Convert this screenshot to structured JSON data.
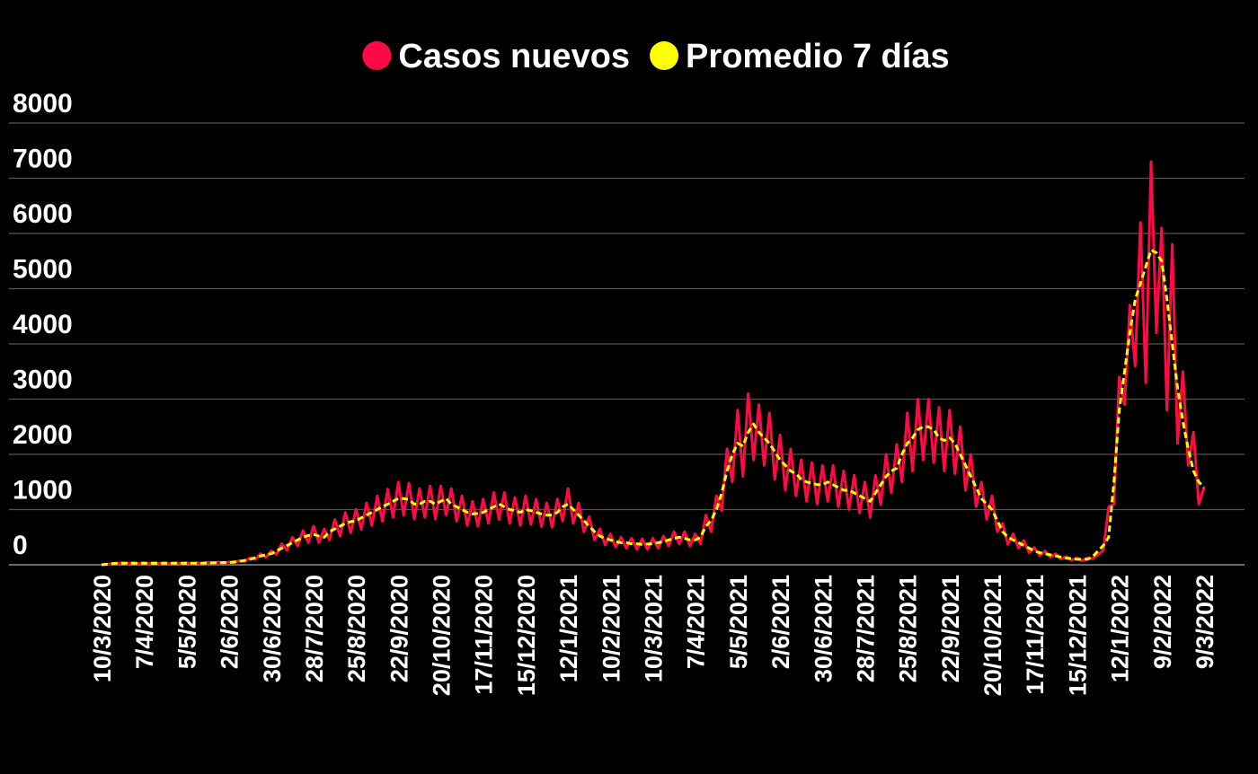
{
  "chart_data": {
    "type": "line",
    "categories": [
      "10/3/2020",
      null,
      null,
      null,
      null,
      null,
      null,
      null,
      "7/4/2020",
      null,
      null,
      null,
      null,
      null,
      null,
      null,
      "5/5/2020",
      null,
      null,
      null,
      null,
      null,
      null,
      null,
      "2/6/2020",
      null,
      null,
      null,
      null,
      null,
      null,
      null,
      "30/6/2020",
      null,
      null,
      null,
      null,
      null,
      null,
      null,
      "28/7/2020",
      null,
      null,
      null,
      null,
      null,
      null,
      null,
      "25/8/2020",
      null,
      null,
      null,
      null,
      null,
      null,
      null,
      "22/9/2020",
      null,
      null,
      null,
      null,
      null,
      null,
      null,
      "20/10/2020",
      null,
      null,
      null,
      null,
      null,
      null,
      null,
      "17/11/2020",
      null,
      null,
      null,
      null,
      null,
      null,
      null,
      "15/12/2020",
      null,
      null,
      null,
      null,
      null,
      null,
      null,
      "12/1/2021",
      null,
      null,
      null,
      null,
      null,
      null,
      null,
      "10/2/2021",
      null,
      null,
      null,
      null,
      null,
      null,
      null,
      "10/3/2021",
      null,
      null,
      null,
      null,
      null,
      null,
      null,
      "7/4/2021",
      null,
      null,
      null,
      null,
      null,
      null,
      null,
      "5/5/2021",
      null,
      null,
      null,
      null,
      null,
      null,
      null,
      "2/6/2021",
      null,
      null,
      null,
      null,
      null,
      null,
      null,
      "30/6/2021",
      null,
      null,
      null,
      null,
      null,
      null,
      null,
      "28/7/2021",
      null,
      null,
      null,
      null,
      null,
      null,
      null,
      "25/8/2021",
      null,
      null,
      null,
      null,
      null,
      null,
      null,
      "22/9/2021",
      null,
      null,
      null,
      null,
      null,
      null,
      null,
      "20/10/2021",
      null,
      null,
      null,
      null,
      null,
      null,
      null,
      "17/11/2021",
      null,
      null,
      null,
      null,
      null,
      null,
      null,
      "15/12/2021",
      null,
      null,
      null,
      null,
      null,
      null,
      null,
      "12/1/2022",
      null,
      null,
      null,
      null,
      null,
      null,
      null,
      "9/2/2022",
      null,
      null,
      null,
      null,
      null,
      null,
      null,
      "9/3/2022"
    ],
    "series": [
      {
        "name": "Casos nuevos",
        "color": "#ff0a45",
        "values": [
          0,
          8,
          25,
          22,
          38,
          22,
          38,
          22,
          38,
          22,
          38,
          22,
          38,
          22,
          38,
          22,
          38,
          22,
          38,
          22,
          44,
          26,
          50,
          30,
          50,
          38,
          75,
          60,
          125,
          98,
          200,
          135,
          250,
          190,
          380,
          260,
          500,
          340,
          620,
          400,
          700,
          400,
          650,
          450,
          820,
          520,
          950,
          580,
          1000,
          640,
          1120,
          710,
          1250,
          790,
          1370,
          860,
          1500,
          900,
          1480,
          830,
          1380,
          860,
          1430,
          830,
          1430,
          900,
          1380,
          790,
          1250,
          710,
          1150,
          700,
          1190,
          750,
          1310,
          820,
          1310,
          750,
          1220,
          710,
          1250,
          730,
          1190,
          690,
          1120,
          680,
          1190,
          790,
          1380,
          750,
          1120,
          600,
          870,
          450,
          650,
          360,
          560,
          320,
          500,
          300,
          480,
          280,
          470,
          280,
          480,
          300,
          520,
          340,
          600,
          380,
          600,
          340,
          560,
          380,
          900,
          600,
          1250,
          980,
          2100,
          1500,
          2800,
          1600,
          3100,
          1900,
          2900,
          1800,
          2750,
          1550,
          2350,
          1350,
          2100,
          1250,
          1900,
          1150,
          1850,
          1100,
          1800,
          1150,
          1800,
          1050,
          1700,
          1000,
          1620,
          940,
          1500,
          860,
          1620,
          1090,
          2000,
          1300,
          2180,
          1500,
          2750,
          1700,
          3000,
          1900,
          3000,
          1850,
          2850,
          1700,
          2800,
          1650,
          2500,
          1350,
          2000,
          1050,
          1500,
          820,
          1250,
          600,
          750,
          370,
          560,
          300,
          440,
          220,
          310,
          165,
          250,
          135,
          200,
          105,
          150,
          85,
          125,
          75,
          125,
          110,
          190,
          260,
          1050,
          1100,
          3400,
          2900,
          4700,
          3600,
          6200,
          3300,
          7300,
          4200,
          6100,
          2800,
          5800,
          2200,
          3500,
          1800,
          2400,
          1100,
          1400
        ]
      },
      {
        "name": "Promedio 7 días",
        "color": "#ffff00",
        "values": [
          0,
          10,
          20,
          30,
          30,
          30,
          30,
          30,
          30,
          30,
          30,
          30,
          30,
          30,
          30,
          30,
          30,
          30,
          30,
          30,
          35,
          35,
          40,
          40,
          40,
          50,
          60,
          80,
          100,
          130,
          160,
          180,
          200,
          250,
          300,
          350,
          400,
          450,
          500,
          530,
          550,
          520,
          500,
          600,
          650,
          700,
          750,
          780,
          800,
          850,
          900,
          950,
          1000,
          1050,
          1100,
          1150,
          1200,
          1200,
          1180,
          1100,
          1100,
          1150,
          1150,
          1100,
          1150,
          1200,
          1100,
          1050,
          1000,
          950,
          920,
          930,
          950,
          1000,
          1050,
          1100,
          1050,
          1000,
          980,
          950,
          1000,
          980,
          950,
          920,
          900,
          900,
          950,
          1050,
          1100,
          1000,
          900,
          800,
          700,
          600,
          520,
          480,
          450,
          420,
          400,
          400,
          380,
          380,
          370,
          375,
          380,
          400,
          420,
          450,
          480,
          500,
          480,
          450,
          450,
          500,
          700,
          800,
          1000,
          1300,
          1700,
          2000,
          2200,
          2150,
          2400,
          2550,
          2400,
          2300,
          2200,
          2050,
          1900,
          1800,
          1700,
          1650,
          1550,
          1500,
          1480,
          1450,
          1450,
          1500,
          1450,
          1400,
          1350,
          1350,
          1300,
          1250,
          1200,
          1150,
          1300,
          1450,
          1600,
          1700,
          1750,
          2000,
          2200,
          2300,
          2450,
          2500,
          2500,
          2450,
          2300,
          2250,
          2300,
          2200,
          2000,
          1800,
          1600,
          1400,
          1200,
          1100,
          1000,
          800,
          600,
          500,
          450,
          400,
          350,
          300,
          250,
          220,
          200,
          180,
          160,
          140,
          120,
          110,
          100,
          100,
          100,
          150,
          250,
          350,
          500,
          1500,
          2800,
          3500,
          4200,
          4800,
          5100,
          5400,
          5700,
          5650,
          5500,
          4800,
          4000,
          3200,
          2600,
          2100,
          1700,
          1500,
          1400
        ]
      }
    ],
    "ylim": [
      0,
      8000
    ],
    "yticks": [
      0,
      1000,
      2000,
      3000,
      4000,
      5000,
      6000,
      7000,
      8000
    ],
    "grid": true
  }
}
